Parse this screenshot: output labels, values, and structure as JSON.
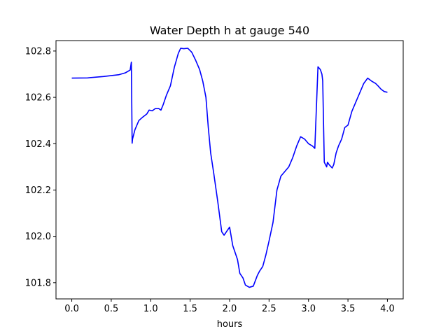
{
  "chart_data": {
    "type": "line",
    "title": "Water Depth h at gauge 540",
    "xlabel": "hours",
    "ylabel": "",
    "xlim": [
      -0.2,
      4.2
    ],
    "ylim": [
      101.73,
      102.845
    ],
    "grid": false,
    "xticks": [
      0.0,
      0.5,
      1.0,
      1.5,
      2.0,
      2.5,
      3.0,
      3.5,
      4.0
    ],
    "xtick_labels": [
      "0.0",
      "0.5",
      "1.0",
      "1.5",
      "2.0",
      "2.5",
      "3.0",
      "3.5",
      "4.0"
    ],
    "yticks": [
      101.8,
      102.0,
      102.2,
      102.4,
      102.6,
      102.8
    ],
    "ytick_labels": [
      "101.8",
      "102.0",
      "102.2",
      "102.4",
      "102.6",
      "102.8"
    ],
    "series": [
      {
        "color": "#0000ff",
        "x": [
          0.0,
          0.2,
          0.4,
          0.6,
          0.68,
          0.74,
          0.755,
          0.765,
          0.77,
          0.8,
          0.85,
          0.9,
          0.95,
          0.98,
          1.02,
          1.06,
          1.1,
          1.13,
          1.16,
          1.2,
          1.25,
          1.3,
          1.35,
          1.38,
          1.42,
          1.47,
          1.52,
          1.57,
          1.62,
          1.66,
          1.7,
          1.73,
          1.76,
          1.8,
          1.85,
          1.9,
          1.93,
          1.96,
          2.0,
          2.04,
          2.07,
          2.1,
          2.13,
          2.17,
          2.2,
          2.25,
          2.3,
          2.35,
          2.38,
          2.42,
          2.46,
          2.5,
          2.55,
          2.6,
          2.65,
          2.7,
          2.75,
          2.8,
          2.85,
          2.9,
          2.95,
          3.0,
          3.05,
          3.08,
          3.12,
          3.15,
          3.17,
          3.18,
          3.2,
          3.23,
          3.24,
          3.26,
          3.3,
          3.32,
          3.35,
          3.38,
          3.42,
          3.46,
          3.5,
          3.55,
          3.6,
          3.65,
          3.7,
          3.75,
          3.8,
          3.85,
          3.88,
          3.92,
          3.96,
          4.0
        ],
        "y": [
          102.683,
          102.684,
          102.69,
          102.698,
          102.706,
          102.718,
          102.752,
          102.402,
          102.42,
          102.46,
          102.5,
          102.515,
          102.528,
          102.545,
          102.542,
          102.552,
          102.552,
          102.545,
          102.57,
          102.61,
          102.65,
          102.73,
          102.79,
          102.812,
          102.81,
          102.812,
          102.795,
          102.76,
          102.72,
          102.67,
          102.6,
          102.47,
          102.36,
          102.27,
          102.15,
          102.02,
          102.005,
          102.02,
          102.04,
          101.96,
          101.93,
          101.9,
          101.84,
          101.82,
          101.79,
          101.78,
          101.785,
          101.83,
          101.85,
          101.87,
          101.92,
          101.98,
          102.06,
          102.2,
          102.26,
          102.28,
          102.3,
          102.34,
          102.39,
          102.43,
          102.42,
          102.4,
          102.39,
          102.38,
          102.732,
          102.72,
          102.7,
          102.672,
          102.32,
          102.3,
          102.32,
          102.31,
          102.295,
          102.31,
          102.36,
          102.39,
          102.42,
          102.47,
          102.48,
          102.54,
          102.58,
          102.62,
          102.66,
          102.683,
          102.67,
          102.66,
          102.65,
          102.635,
          102.625,
          102.622
        ]
      }
    ]
  }
}
